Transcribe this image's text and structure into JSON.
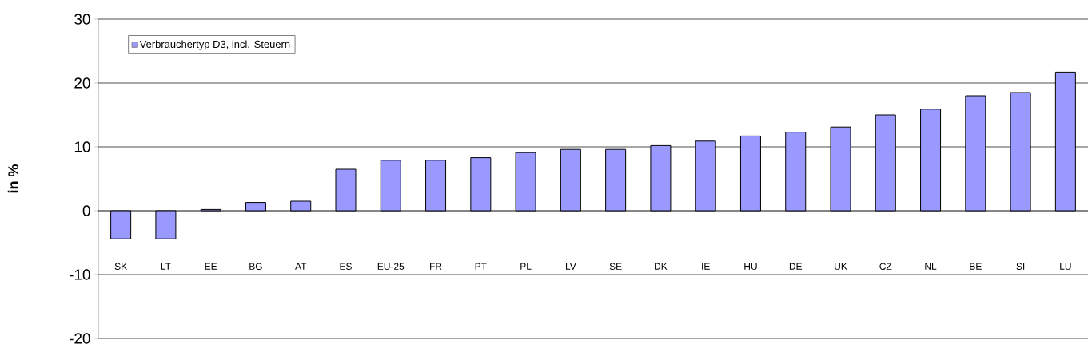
{
  "chart_data": {
    "type": "bar",
    "ylabel": "in %",
    "categories": [
      "SK",
      "LT",
      "EE",
      "BG",
      "AT",
      "ES",
      "EU-25",
      "FR",
      "PT",
      "PL",
      "LV",
      "SE",
      "DK",
      "IE",
      "HU",
      "DE",
      "UK",
      "CZ",
      "NL",
      "BE",
      "SI",
      "LU"
    ],
    "series": [
      {
        "name": "Verbrauchertyp D3, incl. Steuern",
        "color": "#9999ff",
        "values": [
          -4.4,
          -4.4,
          0.2,
          1.3,
          1.5,
          6.5,
          7.9,
          7.9,
          8.3,
          9.1,
          9.6,
          9.6,
          10.2,
          10.9,
          11.7,
          12.3,
          13.1,
          15.0,
          15.9,
          18.0,
          18.5,
          21.7
        ]
      }
    ],
    "ylim": [
      -20,
      30
    ],
    "yticks": [
      -20,
      -10,
      0,
      10,
      20,
      30
    ],
    "grid": "y",
    "legend": "top left"
  }
}
